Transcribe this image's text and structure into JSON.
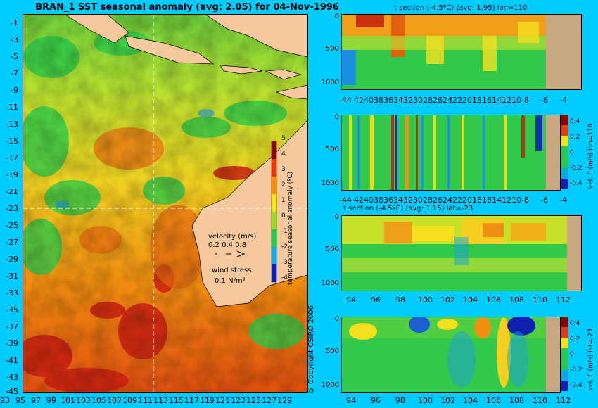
{
  "main_title": "BRAN_1 SST seasonal anomaly (avg: 2.05) for 04-Nov-1996",
  "map": {
    "lat_ticks": [
      "-1",
      "-3",
      "-5",
      "-7",
      "-9",
      "-11",
      "-13",
      "-15",
      "-17",
      "-19",
      "-21",
      "-23",
      "-25",
      "-27",
      "-29",
      "-31",
      "-33",
      "-35",
      "-37",
      "-39",
      "-41",
      "-43",
      "-45"
    ],
    "lon_ticks": [
      "93",
      "95",
      "97",
      "99",
      "101",
      "103",
      "105",
      "107",
      "109",
      "111",
      "113",
      "115",
      "117",
      "119",
      "121",
      "123",
      "125",
      "127",
      "129"
    ],
    "velocity_label": "velocity (m/s)",
    "velocity_scale": "0.2 0.4 0.8",
    "wind_label": "wind stress",
    "wind_scale": "0.1 N/m²",
    "colorbar_ticks": [
      "5",
      "4",
      "3",
      "2",
      "1",
      "0",
      "-1",
      "-2",
      "-3",
      "-4"
    ],
    "colorbar_label": "temperature seasonal anomaly (ºC)",
    "colors": {
      "land": "#f5c89e",
      "bg": "#00ccff"
    }
  },
  "copyright": "© Copyright CSIRO 2006",
  "panels": [
    {
      "title": "t section (-4.5ºC) (avg: 1.95) lon=110",
      "x_ticks": [
        "-44",
        "42",
        "40",
        "38",
        "36",
        "34",
        "32",
        "30",
        "28",
        "26",
        "24",
        "22",
        "20",
        "18",
        "16",
        "14",
        "12",
        "10",
        "-8",
        "-6",
        "-4"
      ],
      "y_ticks": [
        "0",
        "500",
        "1000"
      ]
    },
    {
      "title": "",
      "x_ticks": [
        "-44",
        "42",
        "40",
        "38",
        "36",
        "34",
        "32",
        "30",
        "28",
        "26",
        "24",
        "22",
        "20",
        "18",
        "16",
        "14",
        "12",
        "10",
        "-8",
        "-6",
        "-4"
      ],
      "y_ticks": [
        "0",
        "500",
        "1000"
      ],
      "colorbar_ticks": [
        "0.4",
        "0.2",
        "0",
        "-0.2",
        "-0.4"
      ],
      "colorbar_label": "vel. E (m/s) lon=110"
    },
    {
      "title": "t section (-4.5ºC) (avg: 1.15) lat=-23",
      "x_ticks": [
        "94",
        "96",
        "98",
        "100",
        "102",
        "104",
        "106",
        "108",
        "110",
        "112"
      ],
      "y_ticks": [
        "0",
        "500",
        "1000"
      ]
    },
    {
      "title": "",
      "x_ticks": [
        "94",
        "96",
        "98",
        "100",
        "102",
        "104",
        "106",
        "108",
        "110",
        "112"
      ],
      "y_ticks": [
        "0",
        "500",
        "1000"
      ],
      "colorbar_ticks": [
        "0.4",
        "0.2",
        "0",
        "-0.2",
        "-0.4"
      ],
      "colorbar_label": "vel. E (m/s) lat=-23"
    }
  ]
}
